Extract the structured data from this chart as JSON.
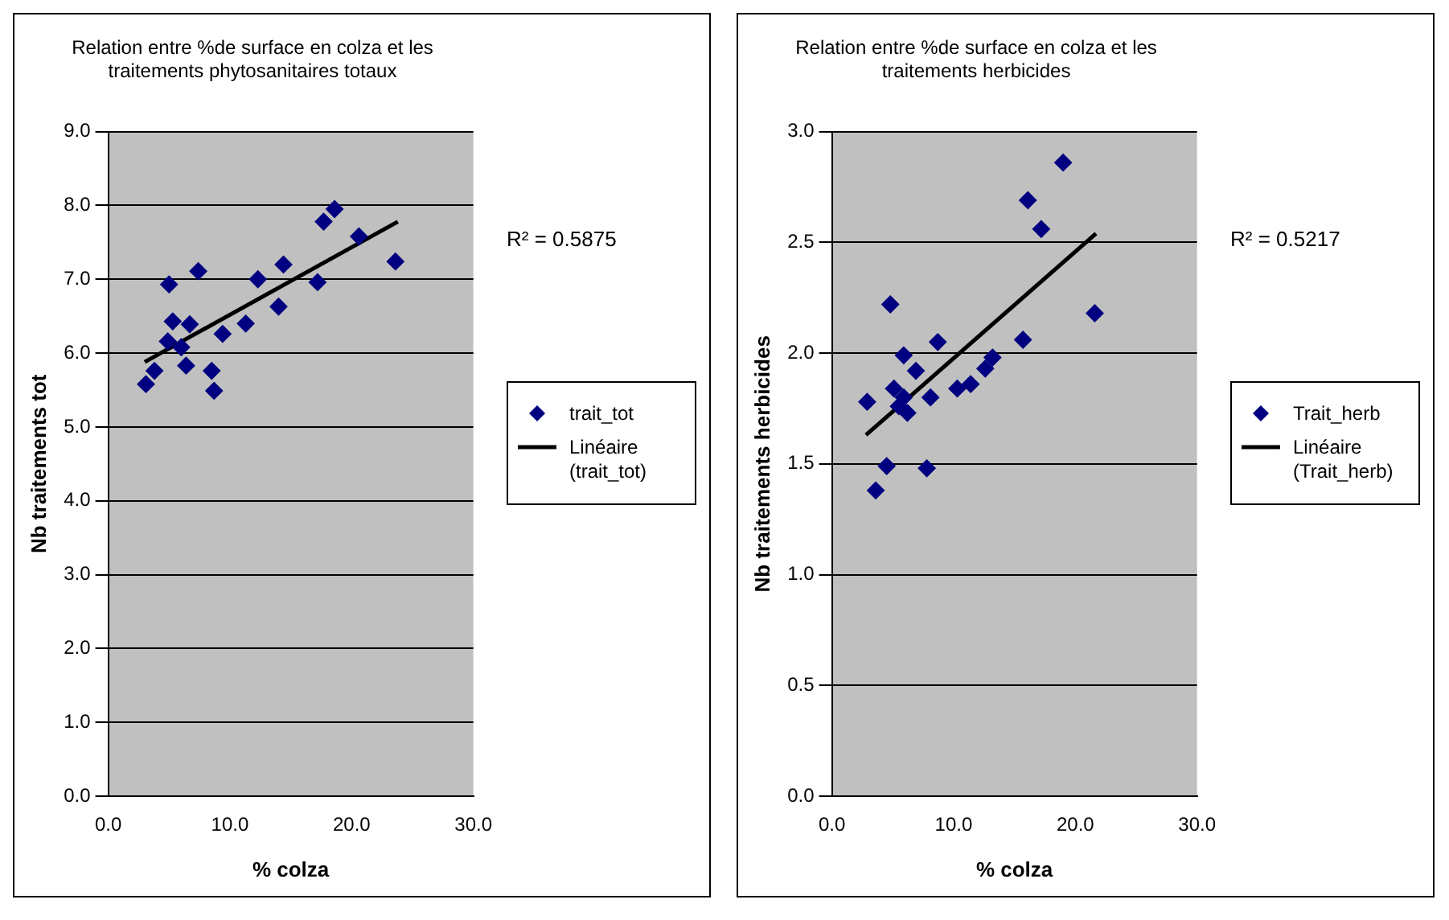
{
  "chart_data": [
    {
      "type": "scatter",
      "title": "Relation entre %de surface en colza et les traitements phytosanitaires totaux",
      "xlabel": "% colza",
      "ylabel": "Nb traitements tot",
      "annotations": [
        "R² = 0.5875"
      ],
      "xlim": [
        0,
        30
      ],
      "ylim": [
        0,
        9
      ],
      "xticks": [
        {
          "value": 0,
          "label": "0.0"
        },
        {
          "value": 10,
          "label": "10.0"
        },
        {
          "value": 20,
          "label": "20.0"
        },
        {
          "value": 30,
          "label": "30.0"
        }
      ],
      "yticks": [
        {
          "value": 0,
          "label": "0.0"
        },
        {
          "value": 1,
          "label": "1.0"
        },
        {
          "value": 2,
          "label": "2.0"
        },
        {
          "value": 3,
          "label": "3.0"
        },
        {
          "value": 4,
          "label": "4.0"
        },
        {
          "value": 5,
          "label": "5.0"
        },
        {
          "value": 6,
          "label": "6.0"
        },
        {
          "value": 7,
          "label": "7.0"
        },
        {
          "value": 8,
          "label": "8.0"
        },
        {
          "value": 9,
          "label": "9.0"
        }
      ],
      "grid": "y",
      "legend": "right",
      "series": [
        {
          "name": "trait_tot",
          "type": "scatter",
          "color": "#000080",
          "marker": "diamond",
          "x": [
            3.1,
            3.8,
            5.0,
            7.4,
            5.3,
            6.7,
            4.9,
            6.0,
            6.4,
            8.5,
            8.7,
            9.4,
            11.3,
            12.3,
            14.0,
            14.4,
            17.2,
            17.7,
            18.6,
            20.6,
            23.6
          ],
          "values": [
            5.58,
            5.76,
            6.93,
            7.11,
            6.43,
            6.39,
            6.16,
            6.08,
            5.83,
            5.76,
            5.49,
            6.26,
            6.4,
            7.0,
            6.63,
            7.2,
            6.96,
            7.78,
            7.95,
            7.58,
            7.24
          ]
        },
        {
          "name": "Linéaire (trait_tot)",
          "type": "line",
          "color": "#000000",
          "marker": "none",
          "line_style": "solid",
          "x": [
            3.0,
            23.8
          ],
          "values": [
            5.88,
            7.78
          ]
        }
      ]
    },
    {
      "type": "scatter",
      "title": "Relation entre %de surface en colza et les traitements herbicides",
      "xlabel": "% colza",
      "ylabel": "Nb traitements herbicides",
      "annotations": [
        "R² = 0.5217"
      ],
      "xlim": [
        0,
        30
      ],
      "ylim": [
        0,
        3
      ],
      "xticks": [
        {
          "value": 0,
          "label": "0.0"
        },
        {
          "value": 10,
          "label": "10.0"
        },
        {
          "value": 20,
          "label": "20.0"
        },
        {
          "value": 30,
          "label": "30.0"
        }
      ],
      "yticks": [
        {
          "value": 0,
          "label": "0.0"
        },
        {
          "value": 0.5,
          "label": "0.5"
        },
        {
          "value": 1,
          "label": "1.0"
        },
        {
          "value": 1.5,
          "label": "1.5"
        },
        {
          "value": 2,
          "label": "2.0"
        },
        {
          "value": 2.5,
          "label": "2.5"
        },
        {
          "value": 3,
          "label": "3.0"
        }
      ],
      "grid": "y",
      "legend": "right",
      "series": [
        {
          "name": "Trait_herb",
          "type": "scatter",
          "color": "#000080",
          "marker": "diamond",
          "x": [
            3.6,
            4.5,
            7.8,
            2.9,
            4.8,
            5.9,
            5.1,
            5.9,
            6.2,
            5.5,
            6.9,
            8.1,
            8.7,
            10.3,
            11.4,
            12.6,
            13.2,
            15.7,
            16.1,
            17.2,
            19.0,
            21.6
          ],
          "values": [
            1.38,
            1.49,
            1.48,
            1.78,
            2.22,
            1.99,
            1.84,
            1.8,
            1.73,
            1.76,
            1.92,
            1.8,
            2.05,
            1.84,
            1.86,
            1.93,
            1.98,
            2.06,
            2.69,
            2.56,
            2.86,
            2.18
          ]
        },
        {
          "name": "Linéaire (Trait_herb)",
          "type": "line",
          "color": "#000000",
          "marker": "none",
          "line_style": "solid",
          "x": [
            2.8,
            21.7
          ],
          "values": [
            1.63,
            2.54
          ]
        }
      ]
    }
  ]
}
